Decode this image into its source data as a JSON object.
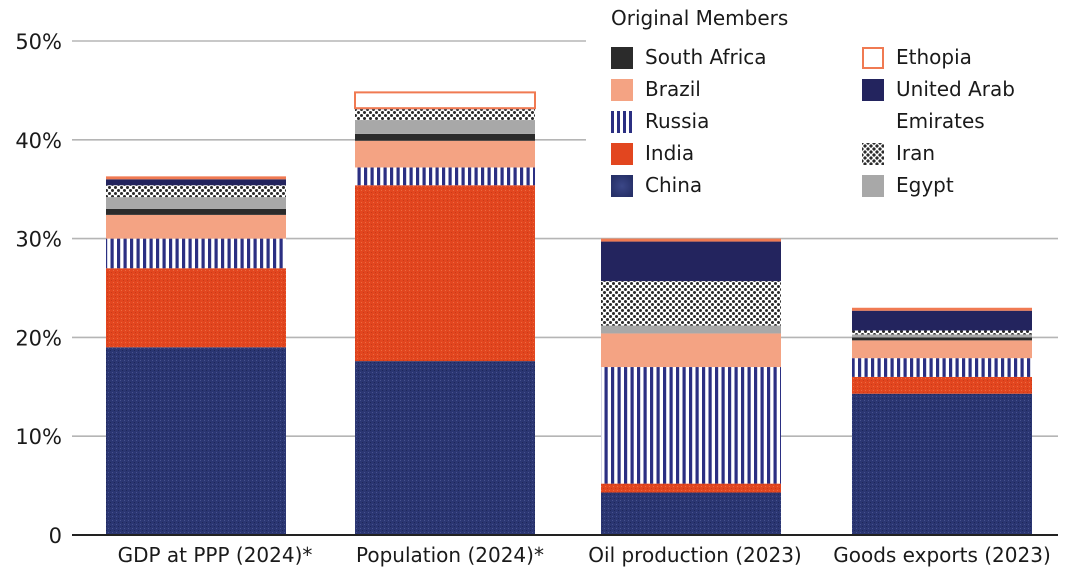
{
  "chart_data": {
    "type": "bar",
    "stacked": true,
    "categories": [
      "GDP at PPP (2024)*",
      "Population (2024)*",
      "Oil production (2023)",
      "Goods exports (2023)"
    ],
    "ylim": [
      0,
      50
    ],
    "yticks": [
      {
        "value": 0,
        "label": "0"
      },
      {
        "value": 10,
        "label": "10%"
      },
      {
        "value": 20,
        "label": "20%"
      },
      {
        "value": 30,
        "label": "30%"
      },
      {
        "value": 40,
        "label": "40%"
      },
      {
        "value": 50,
        "label": "50%"
      }
    ],
    "grid": true,
    "legend_title": "Original Members",
    "series": [
      {
        "name": "China",
        "key": "china",
        "color": "#283470",
        "values": [
          19.0,
          17.6,
          4.3,
          14.3
        ]
      },
      {
        "name": "India",
        "key": "india",
        "color": "#e2461f",
        "values": [
          8.0,
          17.8,
          0.9,
          1.7
        ]
      },
      {
        "name": "Russia",
        "key": "russia",
        "color": "#2b2f82",
        "values": [
          3.0,
          1.8,
          11.8,
          1.9
        ]
      },
      {
        "name": "Brazil",
        "key": "brazil",
        "color": "#f4a383",
        "values": [
          2.4,
          2.7,
          3.4,
          1.8
        ]
      },
      {
        "name": "South Africa",
        "key": "safrica",
        "color": "#2b2b2b",
        "values": [
          0.6,
          0.7,
          0.0,
          0.3
        ]
      },
      {
        "name": "Egypt",
        "key": "egypt",
        "color": "#a8a8a8",
        "values": [
          1.2,
          1.4,
          0.8,
          0.3
        ]
      },
      {
        "name": "Iran",
        "key": "iran",
        "color": "#333333",
        "values": [
          1.2,
          1.1,
          4.5,
          0.4
        ]
      },
      {
        "name": "United Arab Emirates",
        "key": "uae",
        "color": "#23245e",
        "values": [
          0.6,
          0.1,
          4.0,
          2.0
        ]
      },
      {
        "name": "Ethopia",
        "key": "ethiopia",
        "color": "#f07a52",
        "values": [
          0.3,
          1.6,
          0.3,
          0.3
        ]
      }
    ],
    "legend": [
      {
        "key": "safrica",
        "label": "South Africa",
        "col": 0,
        "row": 0
      },
      {
        "key": "brazil",
        "label": "Brazil",
        "col": 0,
        "row": 1
      },
      {
        "key": "russia",
        "label": "Russia",
        "col": 0,
        "row": 2
      },
      {
        "key": "india",
        "label": "India",
        "col": 0,
        "row": 3
      },
      {
        "key": "china",
        "label": "China",
        "col": 0,
        "row": 4
      },
      {
        "key": "ethiopia",
        "label": "Ethopia",
        "col": 1,
        "row": 0
      },
      {
        "key": "uae",
        "label": "United Arab",
        "col": 1,
        "row": 1
      },
      {
        "key": "none",
        "label": "Emirates",
        "col": 1,
        "row": 2
      },
      {
        "key": "iran",
        "label": "Iran",
        "col": 1,
        "row": 3
      },
      {
        "key": "egypt",
        "label": "Egypt",
        "col": 1,
        "row": 4
      }
    ]
  }
}
